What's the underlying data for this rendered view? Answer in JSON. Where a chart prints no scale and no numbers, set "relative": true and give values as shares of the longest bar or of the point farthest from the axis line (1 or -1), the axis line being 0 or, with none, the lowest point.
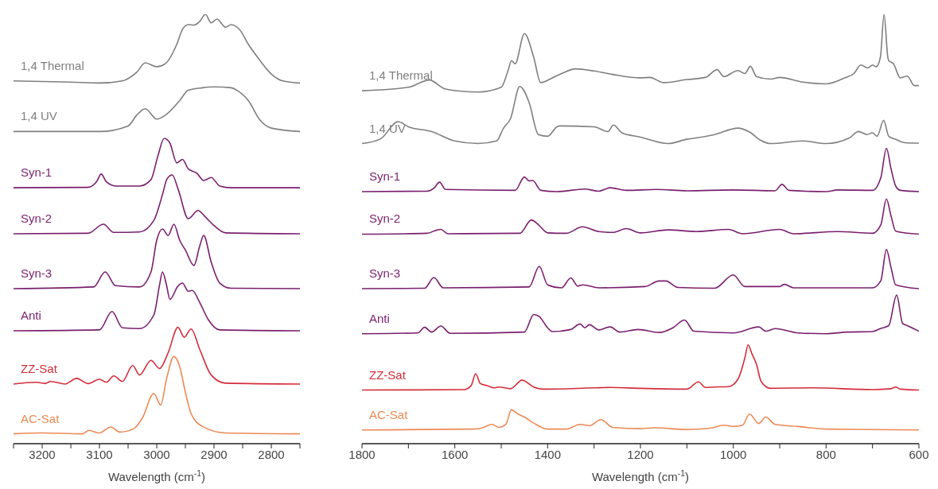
{
  "chart_data": [
    {
      "type": "line",
      "relative": true,
      "xlabel": "Wavelength (cm$^{-1}$)",
      "xlim": [
        3250,
        2750
      ],
      "xticks": [
        {
          "value": 3250,
          "label": null
        },
        3200,
        {
          "value": 3150,
          "label": null
        },
        3100,
        {
          "value": 3050,
          "label": null
        },
        3000,
        {
          "value": 2950,
          "label": null
        },
        2900,
        {
          "value": 2850,
          "label": null
        },
        2800,
        {
          "value": 2750,
          "label": null
        }
      ],
      "series": [
        {
          "name": "1,4 Thermal",
          "color": "#7f7f7f",
          "x": [
            3250,
            3150,
            3100,
            3060,
            3035,
            3020,
            3000,
            2985,
            2965,
            2955,
            2945,
            2935,
            2925,
            2915,
            2905,
            2895,
            2880,
            2870,
            2855,
            2840,
            2820,
            2800,
            2780,
            2750
          ],
          "values": [
            0.845,
            0.842,
            0.84,
            0.845,
            0.865,
            0.887,
            0.878,
            0.885,
            0.93,
            0.965,
            0.976,
            0.975,
            0.983,
            1.0,
            0.98,
            0.989,
            0.97,
            0.976,
            0.964,
            0.93,
            0.893,
            0.861,
            0.845,
            0.84
          ]
        },
        {
          "name": "1,4 UV",
          "color": "#7f7f7f",
          "x": [
            3250,
            3100,
            3050,
            3035,
            3020,
            3000,
            2985,
            2960,
            2945,
            2920,
            2900,
            2870,
            2860,
            2840,
            2820,
            2800,
            2750
          ],
          "values": [
            0.727,
            0.727,
            0.74,
            0.765,
            0.78,
            0.756,
            0.765,
            0.799,
            0.823,
            0.829,
            0.831,
            0.829,
            0.823,
            0.799,
            0.754,
            0.735,
            0.727
          ]
        },
        {
          "name": "Syn-1",
          "color": "#7a1f6e",
          "x": [
            3250,
            3120,
            3105,
            3097,
            3088,
            3070,
            3030,
            3010,
            2998,
            2987,
            2977,
            2965,
            2955,
            2945,
            2930,
            2918,
            2905,
            2890,
            2870,
            2750
          ],
          "values": [
            0.596,
            0.597,
            0.61,
            0.628,
            0.61,
            0.6,
            0.6,
            0.615,
            0.67,
            0.711,
            0.7,
            0.654,
            0.662,
            0.64,
            0.63,
            0.613,
            0.62,
            0.6,
            0.596,
            0.596
          ]
        },
        {
          "name": "Syn-2",
          "color": "#7a1f6e",
          "x": [
            3250,
            3120,
            3093,
            3075,
            3030,
            3005,
            2990,
            2982,
            2973,
            2962,
            2945,
            2928,
            2915,
            2900,
            2880,
            2750
          ],
          "values": [
            0.489,
            0.49,
            0.511,
            0.492,
            0.493,
            0.52,
            0.58,
            0.617,
            0.626,
            0.59,
            0.524,
            0.543,
            0.528,
            0.508,
            0.491,
            0.489
          ]
        },
        {
          "name": "Syn-3",
          "color": "#7a1f6e",
          "x": [
            3250,
            3110,
            3090,
            3072,
            3030,
            3010,
            3000,
            2990,
            2980,
            2970,
            2960,
            2950,
            2935,
            2925,
            2918,
            2905,
            2890,
            2870,
            2750
          ],
          "values": [
            0.361,
            0.365,
            0.4,
            0.368,
            0.365,
            0.4,
            0.474,
            0.5,
            0.485,
            0.511,
            0.474,
            0.451,
            0.415,
            0.46,
            0.485,
            0.423,
            0.374,
            0.362,
            0.361
          ]
        },
        {
          "name": "Anti",
          "color": "#7a1f6e",
          "x": [
            3250,
            3100,
            3078,
            3060,
            3030,
            3005,
            2995,
            2990,
            2983,
            2977,
            2963,
            2955,
            2945,
            2938,
            2925,
            2910,
            2890,
            2750
          ],
          "values": [
            0.263,
            0.265,
            0.308,
            0.27,
            0.268,
            0.3,
            0.37,
            0.4,
            0.37,
            0.336,
            0.367,
            0.374,
            0.355,
            0.357,
            0.329,
            0.289,
            0.265,
            0.263
          ]
        },
        {
          "name": "ZZ-Sat",
          "color": "#d42d3a",
          "x": [
            3250,
            3210,
            3195,
            3185,
            3160,
            3140,
            3120,
            3100,
            3088,
            3075,
            3060,
            3042,
            3030,
            3010,
            2995,
            2980,
            2963,
            2952,
            2940,
            2925,
            2905,
            2880,
            2750
          ],
          "values": [
            0.139,
            0.143,
            0.14,
            0.145,
            0.139,
            0.152,
            0.14,
            0.15,
            0.143,
            0.158,
            0.145,
            0.182,
            0.16,
            0.194,
            0.175,
            0.212,
            0.271,
            0.248,
            0.267,
            0.22,
            0.16,
            0.141,
            0.139
          ]
        },
        {
          "name": "AC-Sat",
          "color": "#ec8a55",
          "x": [
            3250,
            3200,
            3130,
            3118,
            3100,
            3080,
            3065,
            3040,
            3025,
            3005,
            2993,
            2983,
            2970,
            2960,
            2950,
            2940,
            2920,
            2880,
            2750
          ],
          "values": [
            0.023,
            0.025,
            0.023,
            0.031,
            0.025,
            0.039,
            0.027,
            0.035,
            0.06,
            0.117,
            0.09,
            0.15,
            0.203,
            0.18,
            0.12,
            0.07,
            0.04,
            0.025,
            0.023
          ]
        }
      ]
    },
    {
      "type": "line",
      "relative": true,
      "xlabel": "Wavelength (cm$^{-1}$)",
      "xlim": [
        1800,
        600
      ],
      "xticks": [
        1800,
        {
          "value": 1700,
          "label": null
        },
        1600,
        {
          "value": 1500,
          "label": null
        },
        1400,
        {
          "value": 1300,
          "label": null
        },
        1200,
        {
          "value": 1100,
          "label": null
        },
        1000,
        {
          "value": 900,
          "label": null
        },
        800,
        {
          "value": 700,
          "label": null
        },
        600
      ],
      "series": [
        {
          "name": "1,4 Thermal",
          "color": "#7f7f7f",
          "x": [
            1800,
            1700,
            1655,
            1620,
            1550,
            1500,
            1485,
            1478,
            1470,
            1450,
            1430,
            1415,
            1390,
            1370,
            1340,
            1300,
            1260,
            1200,
            1180,
            1150,
            1100,
            1060,
            1035,
            1020,
            990,
            975,
            963,
            950,
            920,
            900,
            850,
            800,
            760,
            740,
            725,
            710,
            700,
            692,
            683,
            675,
            667,
            665,
            655,
            640,
            625,
            610,
            600
          ],
          "values": [
            0.822,
            0.83,
            0.847,
            0.826,
            0.819,
            0.83,
            0.87,
            0.892,
            0.885,
            0.955,
            0.9,
            0.841,
            0.852,
            0.862,
            0.873,
            0.868,
            0.86,
            0.852,
            0.853,
            0.841,
            0.848,
            0.853,
            0.871,
            0.855,
            0.869,
            0.862,
            0.879,
            0.855,
            0.849,
            0.853,
            0.842,
            0.838,
            0.852,
            0.862,
            0.882,
            0.875,
            0.882,
            0.878,
            0.9,
            1.0,
            0.9,
            0.892,
            0.885,
            0.852,
            0.856,
            0.834,
            0.834
          ]
        },
        {
          "name": "1,4 UV",
          "color": "#7f7f7f",
          "x": [
            1800,
            1760,
            1722,
            1700,
            1650,
            1600,
            1550,
            1510,
            1495,
            1480,
            1460,
            1440,
            1420,
            1400,
            1380,
            1375,
            1300,
            1270,
            1258,
            1240,
            1200,
            1140,
            1100,
            1080,
            1040,
            990,
            965,
            940,
            920,
            850,
            800,
            750,
            730,
            712,
            700,
            690,
            676,
            665,
            650,
            630,
            600
          ],
          "values": [
            0.699,
            0.71,
            0.75,
            0.738,
            0.727,
            0.705,
            0.699,
            0.705,
            0.735,
            0.757,
            0.832,
            0.795,
            0.72,
            0.716,
            0.738,
            0.74,
            0.738,
            0.727,
            0.742,
            0.724,
            0.714,
            0.699,
            0.709,
            0.712,
            0.72,
            0.735,
            0.726,
            0.706,
            0.699,
            0.705,
            0.699,
            0.712,
            0.727,
            0.72,
            0.724,
            0.716,
            0.753,
            0.716,
            0.709,
            0.701,
            0.7
          ]
        },
        {
          "name": "Syn-1",
          "color": "#7a1f6e",
          "x": [
            1800,
            1660,
            1645,
            1633,
            1620,
            1470,
            1450,
            1440,
            1432,
            1415,
            1380,
            1320,
            1290,
            1265,
            1230,
            1165,
            1100,
            1000,
            910,
            895,
            880,
            800,
            775,
            700,
            682,
            670,
            660,
            650,
            640,
            600
          ],
          "values": [
            0.587,
            0.588,
            0.595,
            0.609,
            0.592,
            0.59,
            0.621,
            0.612,
            0.613,
            0.59,
            0.587,
            0.593,
            0.588,
            0.596,
            0.59,
            0.592,
            0.589,
            0.591,
            0.589,
            0.604,
            0.59,
            0.587,
            0.591,
            0.59,
            0.62,
            0.688,
            0.64,
            0.6,
            0.59,
            0.587
          ]
        },
        {
          "name": "Syn-2",
          "color": "#7a1f6e",
          "x": [
            1800,
            1660,
            1640,
            1630,
            1615,
            1460,
            1435,
            1420,
            1400,
            1360,
            1325,
            1290,
            1260,
            1230,
            1200,
            1140,
            1080,
            1010,
            980,
            900,
            870,
            775,
            700,
            682,
            670,
            660,
            650,
            600
          ],
          "values": [
            0.488,
            0.49,
            0.497,
            0.499,
            0.489,
            0.49,
            0.521,
            0.51,
            0.491,
            0.49,
            0.505,
            0.494,
            0.492,
            0.501,
            0.491,
            0.498,
            0.494,
            0.499,
            0.489,
            0.499,
            0.489,
            0.494,
            0.49,
            0.51,
            0.57,
            0.53,
            0.495,
            0.488
          ]
        },
        {
          "name": "Syn-3",
          "color": "#7a1f6e",
          "x": [
            1800,
            1665,
            1645,
            1625,
            1440,
            1418,
            1400,
            1370,
            1350,
            1335,
            1325,
            1290,
            1190,
            1160,
            1145,
            1120,
            1040,
            1000,
            975,
            900,
            890,
            870,
            700,
            682,
            670,
            660,
            650,
            600
          ],
          "values": [
            0.361,
            0.362,
            0.387,
            0.363,
            0.365,
            0.413,
            0.37,
            0.363,
            0.386,
            0.367,
            0.37,
            0.363,
            0.366,
            0.379,
            0.379,
            0.364,
            0.362,
            0.393,
            0.366,
            0.366,
            0.371,
            0.363,
            0.363,
            0.38,
            0.452,
            0.41,
            0.37,
            0.361
          ]
        },
        {
          "name": "Anti",
          "color": "#7a1f6e",
          "x": [
            1800,
            1680,
            1665,
            1650,
            1630,
            1610,
            1450,
            1430,
            1418,
            1400,
            1390,
            1350,
            1330,
            1320,
            1310,
            1290,
            1265,
            1245,
            1205,
            1160,
            1130,
            1105,
            1085,
            1000,
            945,
            930,
            910,
            860,
            800,
            755,
            700,
            683,
            665,
            648,
            635,
            625,
            600
          ],
          "values": [
            0.256,
            0.258,
            0.271,
            0.26,
            0.274,
            0.257,
            0.26,
            0.301,
            0.296,
            0.27,
            0.261,
            0.266,
            0.279,
            0.27,
            0.277,
            0.265,
            0.272,
            0.26,
            0.266,
            0.259,
            0.27,
            0.288,
            0.262,
            0.258,
            0.272,
            0.262,
            0.268,
            0.258,
            0.256,
            0.26,
            0.261,
            0.268,
            0.275,
            0.346,
            0.28,
            0.275,
            0.262
          ]
        },
        {
          "name": "ZZ-Sat",
          "color": "#d42d3a",
          "x": [
            1800,
            1580,
            1565,
            1555,
            1545,
            1530,
            1515,
            1505,
            1480,
            1455,
            1430,
            1410,
            1300,
            1265,
            1200,
            1100,
            1075,
            1060,
            1040,
            1010,
            990,
            975,
            968,
            960,
            950,
            940,
            920,
            830,
            700,
            660,
            650,
            640,
            600
          ],
          "values": [
            0.125,
            0.126,
            0.135,
            0.163,
            0.14,
            0.135,
            0.13,
            0.132,
            0.128,
            0.148,
            0.132,
            0.127,
            0.13,
            0.131,
            0.129,
            0.127,
            0.144,
            0.131,
            0.132,
            0.133,
            0.15,
            0.2,
            0.23,
            0.21,
            0.185,
            0.145,
            0.129,
            0.13,
            0.126,
            0.128,
            0.132,
            0.127,
            0.125
          ]
        },
        {
          "name": "AC-Sat",
          "color": "#ec8a55",
          "x": [
            1800,
            1560,
            1540,
            1520,
            1505,
            1490,
            1478,
            1465,
            1450,
            1430,
            1400,
            1360,
            1330,
            1310,
            1285,
            1260,
            1200,
            1170,
            1100,
            1050,
            1020,
            1000,
            980,
            965,
            945,
            930,
            910,
            860,
            800,
            700,
            600
          ],
          "values": [
            0.032,
            0.034,
            0.037,
            0.045,
            0.038,
            0.045,
            0.079,
            0.07,
            0.062,
            0.048,
            0.034,
            0.034,
            0.045,
            0.042,
            0.056,
            0.038,
            0.035,
            0.037,
            0.033,
            0.036,
            0.043,
            0.04,
            0.043,
            0.069,
            0.047,
            0.062,
            0.045,
            0.04,
            0.034,
            0.033,
            0.032
          ]
        }
      ]
    }
  ]
}
